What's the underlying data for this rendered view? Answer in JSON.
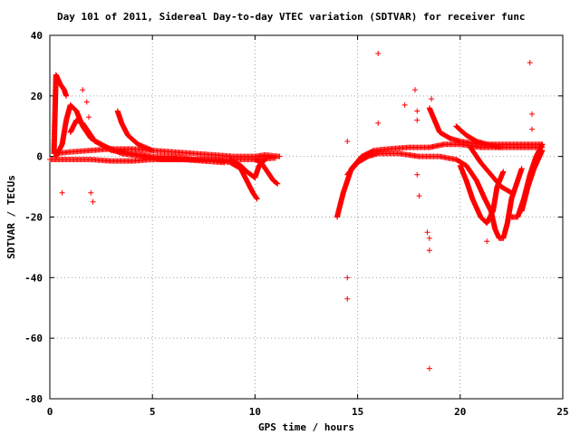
{
  "chart_data": {
    "type": "scatter",
    "title": "Day 101 of 2011, Sidereal Day-to-day VTEC variation (SDTVAR) for receiver func",
    "xlabel": "GPS time / hours",
    "ylabel": "SDTVAR / TECUs",
    "xlim": [
      0,
      25
    ],
    "ylim": [
      -80,
      40
    ],
    "x_ticks": [
      0,
      5,
      10,
      15,
      20,
      25
    ],
    "y_ticks": [
      -80,
      -60,
      -40,
      -20,
      0,
      20,
      40
    ],
    "grid": true,
    "marker": "+",
    "color": "#ff0000",
    "bands": [
      {
        "points": [
          [
            0.0,
            -1
          ],
          [
            1,
            -1
          ],
          [
            2,
            -1
          ],
          [
            3,
            -1.5
          ],
          [
            4,
            -1.5
          ],
          [
            5,
            -1
          ],
          [
            6,
            -1
          ],
          [
            7,
            -1
          ],
          [
            8,
            -1
          ],
          [
            9,
            -1
          ],
          [
            10,
            -1
          ],
          [
            11,
            -0.5
          ]
        ]
      },
      {
        "points": [
          [
            0.3,
            1
          ],
          [
            1,
            1.5
          ],
          [
            2,
            2
          ],
          [
            3,
            2.5
          ],
          [
            4,
            2.5
          ],
          [
            5,
            2
          ],
          [
            6,
            1.5
          ],
          [
            7,
            1
          ],
          [
            8,
            0.5
          ],
          [
            9,
            0
          ],
          [
            10,
            0
          ],
          [
            10.5,
            0.5
          ],
          [
            11.2,
            0
          ]
        ]
      },
      {
        "points": [
          [
            0.3,
            0
          ],
          [
            0.6,
            4
          ],
          [
            0.8,
            12
          ],
          [
            1.0,
            17
          ],
          [
            1.3,
            15
          ],
          [
            1.6,
            10
          ],
          [
            2.0,
            6
          ],
          [
            2.5,
            4
          ],
          [
            3.0,
            2
          ],
          [
            4,
            1
          ],
          [
            5,
            0
          ],
          [
            6,
            0
          ],
          [
            7,
            -1
          ],
          [
            8,
            -1
          ],
          [
            8.8,
            -2
          ],
          [
            9.3,
            -4
          ],
          [
            9.6,
            -8
          ],
          [
            9.9,
            -12
          ],
          [
            10.1,
            -14
          ]
        ]
      },
      {
        "points": [
          [
            1.0,
            8
          ],
          [
            1.3,
            12
          ],
          [
            1.6,
            11
          ],
          [
            1.9,
            8
          ],
          [
            2.2,
            5
          ],
          [
            2.8,
            3
          ],
          [
            3.5,
            1
          ],
          [
            4.5,
            0
          ],
          [
            5.5,
            -1
          ],
          [
            6.5,
            -1
          ],
          [
            7.5,
            -1.5
          ],
          [
            8.5,
            -2
          ]
        ]
      },
      {
        "points": [
          [
            0.2,
            1
          ],
          [
            0.3,
            27
          ],
          [
            0.5,
            24
          ],
          [
            0.7,
            22
          ],
          [
            0.8,
            20
          ]
        ]
      },
      {
        "points": [
          [
            3.3,
            15
          ],
          [
            3.5,
            11
          ],
          [
            3.8,
            7
          ],
          [
            4.3,
            4
          ],
          [
            5,
            2
          ]
        ]
      },
      {
        "points": [
          [
            8.8,
            -1
          ],
          [
            9.3,
            -3
          ],
          [
            9.6,
            -5
          ],
          [
            9.8,
            -6
          ],
          [
            10.0,
            -7
          ],
          [
            10.2,
            -3
          ],
          [
            10.5,
            -1
          ]
        ]
      },
      {
        "points": [
          [
            10.0,
            -1
          ],
          [
            10.3,
            -2
          ],
          [
            10.6,
            -5
          ],
          [
            10.9,
            -8
          ],
          [
            11.1,
            -9
          ]
        ]
      },
      {
        "points": [
          [
            14.0,
            -20
          ],
          [
            14.3,
            -12
          ],
          [
            14.7,
            -4
          ],
          [
            15.2,
            0
          ],
          [
            15.8,
            2
          ],
          [
            16.5,
            2.5
          ],
          [
            17.5,
            3
          ],
          [
            18.5,
            3
          ],
          [
            19.2,
            4
          ],
          [
            20,
            4
          ],
          [
            21,
            3
          ],
          [
            22,
            3
          ],
          [
            23,
            3
          ],
          [
            24,
            3
          ]
        ]
      },
      {
        "points": [
          [
            14.5,
            -6
          ],
          [
            15,
            -2
          ],
          [
            15.5,
            0
          ],
          [
            16,
            1
          ],
          [
            17,
            1
          ],
          [
            18,
            0
          ],
          [
            19,
            0
          ],
          [
            19.8,
            -1
          ],
          [
            20.3,
            -3
          ],
          [
            20.8,
            -8
          ],
          [
            21.2,
            -14
          ],
          [
            21.5,
            -18
          ],
          [
            21.7,
            -24
          ],
          [
            21.9,
            -27
          ],
          [
            22.1,
            -27
          ],
          [
            22.3,
            -22
          ],
          [
            22.5,
            -14
          ],
          [
            22.8,
            -8
          ],
          [
            23.0,
            -4
          ]
        ]
      },
      {
        "points": [
          [
            18.5,
            16
          ],
          [
            19,
            8
          ],
          [
            19.5,
            6
          ],
          [
            20,
            5
          ],
          [
            21,
            4
          ],
          [
            22,
            4
          ],
          [
            23,
            4
          ],
          [
            24,
            4
          ]
        ]
      },
      {
        "points": [
          [
            20.0,
            -3
          ],
          [
            20.3,
            -8
          ],
          [
            20.6,
            -14
          ],
          [
            21.0,
            -20
          ],
          [
            21.3,
            -22
          ],
          [
            21.6,
            -18
          ],
          [
            21.8,
            -10
          ],
          [
            22.1,
            -5
          ]
        ]
      },
      {
        "points": [
          [
            23.0,
            -18
          ],
          [
            23.3,
            -10
          ],
          [
            23.6,
            -4
          ],
          [
            24.0,
            2
          ]
        ]
      },
      {
        "points": [
          [
            22.5,
            -20
          ],
          [
            22.8,
            -20
          ],
          [
            23.1,
            -14
          ],
          [
            23.4,
            -6
          ],
          [
            23.7,
            0
          ],
          [
            24.0,
            4
          ]
        ]
      },
      {
        "points": [
          [
            20.5,
            3
          ],
          [
            21.0,
            -2
          ],
          [
            21.5,
            -6
          ],
          [
            22.0,
            -10
          ],
          [
            22.5,
            -12
          ]
        ]
      },
      {
        "points": [
          [
            19.8,
            10
          ],
          [
            20.3,
            7
          ],
          [
            20.8,
            5
          ],
          [
            21.3,
            4
          ],
          [
            22,
            3
          ]
        ]
      }
    ],
    "isolated_points": [
      [
        0.6,
        -12
      ],
      [
        1.6,
        22
      ],
      [
        1.8,
        18
      ],
      [
        1.9,
        13
      ],
      [
        2.0,
        -12
      ],
      [
        2.1,
        -15
      ],
      [
        14.5,
        5
      ],
      [
        14.5,
        -40
      ],
      [
        14.5,
        -47
      ],
      [
        16.0,
        34
      ],
      [
        16.0,
        11
      ],
      [
        17.3,
        17
      ],
      [
        17.8,
        22
      ],
      [
        17.9,
        15
      ],
      [
        17.9,
        12
      ],
      [
        17.9,
        -6
      ],
      [
        18.0,
        -13
      ],
      [
        18.4,
        -25
      ],
      [
        18.5,
        -27
      ],
      [
        18.5,
        -31
      ],
      [
        18.5,
        -70
      ],
      [
        18.6,
        19
      ],
      [
        21.3,
        -28
      ],
      [
        23.4,
        31
      ],
      [
        23.5,
        14
      ],
      [
        23.5,
        9
      ]
    ]
  }
}
